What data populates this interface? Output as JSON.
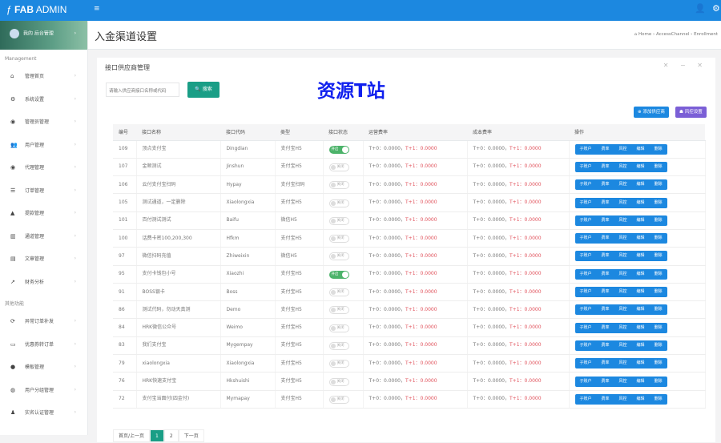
{
  "app": {
    "logo_text_bold": "FAB",
    "logo_text": "ADMIN",
    "menu_icon": "hamburger-icon",
    "user_icon": "user-icon",
    "settings_icon": "gear-icon"
  },
  "sidebar": {
    "user_label": "我的  后台管理",
    "management_label": "Management",
    "items": [
      {
        "label": "管理首页",
        "icon": "home-icon",
        "glyph": "⌂"
      },
      {
        "label": "系统设置",
        "icon": "gears-icon",
        "glyph": "⚙"
      },
      {
        "label": "管理员管理",
        "icon": "user-circle-icon",
        "glyph": "◉"
      },
      {
        "label": "用户管理",
        "icon": "users-icon",
        "glyph": "👥"
      },
      {
        "label": "代理管理",
        "icon": "user-circle-icon",
        "glyph": "◉"
      },
      {
        "label": "订单管理",
        "icon": "list-icon",
        "glyph": "☰"
      },
      {
        "label": "提款管理",
        "icon": "money-icon",
        "glyph": "▲"
      },
      {
        "label": "通道管理",
        "icon": "bank-icon",
        "glyph": "▥"
      },
      {
        "label": "文章管理",
        "icon": "book-icon",
        "glyph": "▤"
      },
      {
        "label": "财务分析",
        "icon": "line-chart-icon",
        "glyph": "↗"
      }
    ],
    "other_label": "其他功能",
    "other_items": [
      {
        "label": "异常订单补发",
        "icon": "refresh-icon",
        "glyph": "⟳"
      },
      {
        "label": "优惠券转订单",
        "icon": "card-icon",
        "glyph": "▭"
      },
      {
        "label": "模板管理",
        "icon": "apple-icon",
        "glyph": "●"
      },
      {
        "label": "用户分组管理",
        "icon": "wechat-icon",
        "glyph": "◍"
      },
      {
        "label": "实名认证管理",
        "icon": "user-icon",
        "glyph": "♟"
      }
    ]
  },
  "page": {
    "title": "入金渠道设置",
    "breadcrumb": [
      "Home",
      "AccessChannel",
      "Enrollment"
    ]
  },
  "panel": {
    "title": "接口供应商管理",
    "search_placeholder": "请输入供应商接口名称或代码",
    "search_label": "搜索",
    "add_label": "添加供应商",
    "risk_label": "风控设置",
    "tool_icons": "✕ − ✕"
  },
  "table": {
    "headers": [
      "编号",
      "接口名称",
      "接口代码",
      "类型",
      "接口状态",
      "运营费率",
      "成本费率",
      "操作"
    ],
    "on_label": "开启",
    "off_label": "关闭",
    "rate_t0": "T+0：0.0000，",
    "rate_t1": "T+1：0.0000",
    "actions": [
      "子账户",
      "费率",
      "风控",
      "编辑",
      "删除"
    ],
    "rows": [
      [
        "109",
        "顶点支付宝",
        "Dingdian",
        "支付宝H5",
        true
      ],
      [
        "107",
        "金顺测试",
        "Jinshun",
        "支付宝H5",
        false
      ],
      [
        "106",
        "云付支付宝扫码",
        "Hypay",
        "支付宝扫码",
        false
      ],
      [
        "105",
        "测试通道，一定删除",
        "Xiaolongxia",
        "支付宝H5",
        false
      ],
      [
        "101",
        "百付测试测试",
        "Baifu",
        "微信H5",
        false
      ],
      [
        "100",
        "话费卡密100,200,300",
        "Hfkm",
        "支付宝H5",
        false
      ],
      [
        "97",
        "微信扫码充值",
        "Zhiweixin",
        "微信H5",
        false
      ],
      [
        "95",
        "支付卡钱包小号",
        "Xiaozhi",
        "支付宝H5",
        true
      ],
      [
        "91",
        "BOSS银卡",
        "Boss",
        "支付宝H5",
        false
      ],
      [
        "86",
        "测试代码，勿动天真测",
        "Demo",
        "支付宝H5",
        false
      ],
      [
        "84",
        "HRK微信公众号",
        "Weimo",
        "支付宝H5",
        false
      ],
      [
        "83",
        "我们支付宝",
        "Mygempay",
        "支付宝H5",
        false
      ],
      [
        "79",
        "xiaolongxia",
        "Xiaolongxia",
        "支付宝H5",
        false
      ],
      [
        "76",
        "HRK快速支付宝",
        "Hkshuishi",
        "支付宝H5",
        false
      ],
      [
        "72",
        "支付宝当面付(四金付)",
        "Mymapay",
        "支付宝H5",
        false
      ]
    ]
  },
  "pagination": {
    "prev": "首页/上一页",
    "pages": [
      "1",
      "2"
    ],
    "next": "下一页",
    "current": "1"
  },
  "watermark": "资源T站",
  "colors": {
    "primary": "#1c88e0",
    "success": "#1a9e86",
    "purple": "#7b5fd6",
    "switch_on": "#4cb36a"
  }
}
